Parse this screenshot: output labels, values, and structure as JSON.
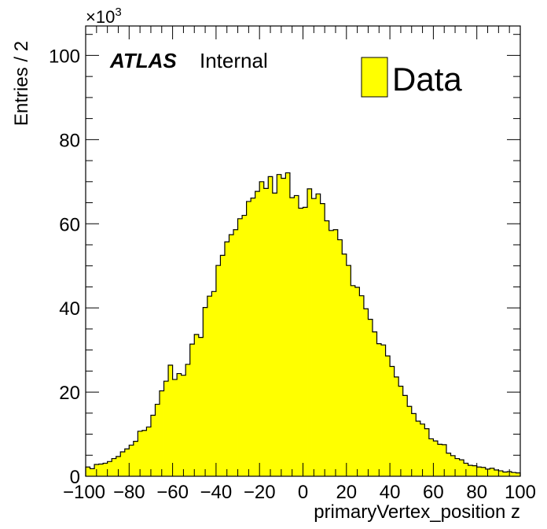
{
  "chart_data": {
    "type": "histogram",
    "xlabel": "primaryVertex_position z",
    "ylabel": "Entries / 2",
    "xlim": [
      -100,
      100
    ],
    "ylim": [
      0,
      107
    ],
    "bin_width": 2,
    "y_multiplier_label": "×10",
    "y_multiplier_exponent": "3",
    "x_ticks": [
      "−100",
      "−80",
      "−60",
      "−40",
      "−20",
      "0",
      "20",
      "40",
      "60",
      "80",
      "100"
    ],
    "y_ticks": [
      "0",
      "20",
      "40",
      "60",
      "80",
      "100"
    ],
    "atlas_label": "ATLAS",
    "atlas_status": "Internal",
    "fill_color": "#ffff00",
    "line_color": "#000000",
    "series": [
      {
        "name": "Data",
        "bin_edges_start": -100,
        "values": [
          2.2,
          1.8,
          2.8,
          2.9,
          3.1,
          3.5,
          4.2,
          4.7,
          5.8,
          6.5,
          7.4,
          8.3,
          10.7,
          10.9,
          11.7,
          14.5,
          17.1,
          20.3,
          22.6,
          26.4,
          23.0,
          24.4,
          24.0,
          26.6,
          31.4,
          33.7,
          33.0,
          40.1,
          42.8,
          43.9,
          50.1,
          52.5,
          55.7,
          57.4,
          58.6,
          61.2,
          62.0,
          65.3,
          66.1,
          67.7,
          70.0,
          68.4,
          71.2,
          67.3,
          71.7,
          70.8,
          72.1,
          66.2,
          66.7,
          63.7,
          63.9,
          68.3,
          66.0,
          67.1,
          64.8,
          60.7,
          58.4,
          58.6,
          56.2,
          52.8,
          50.1,
          45.3,
          44.9,
          42.9,
          39.8,
          37.3,
          34.3,
          31.5,
          31.2,
          28.6,
          26.1,
          23.6,
          21.4,
          19.2,
          16.6,
          14.9,
          13.1,
          12.4,
          11.3,
          8.9,
          8.4,
          7.6,
          7.5,
          5.5,
          4.9,
          4.2,
          3.9,
          3.1,
          2.6,
          2.5,
          2.2,
          2.1,
          1.7,
          1.9,
          1.5,
          1.3,
          1.0,
          1.1,
          0.9,
          0.8
        ]
      }
    ],
    "legend": {
      "entries": [
        "Data"
      ],
      "position": "top-right"
    }
  }
}
